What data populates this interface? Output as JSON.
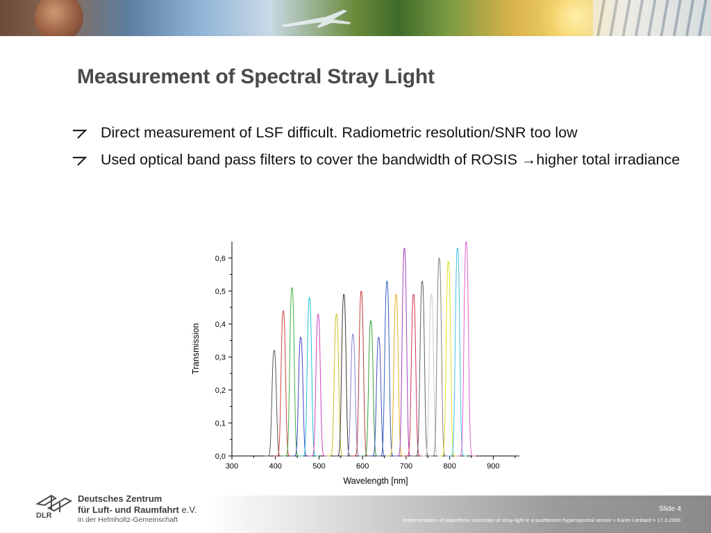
{
  "slide": {
    "title": "Measurement of Spectral Stray Light",
    "bullets": [
      "Direct measurement of LSF difficult. Radiometric resolution/SNR too low",
      "Used optical band pass filters to cover the bandwidth of ROSIS →higher total irradiance"
    ]
  },
  "chart_data": {
    "type": "line",
    "xlabel": "Wavelength [nm]",
    "ylabel": "Transmission",
    "xlim": [
      300,
      960
    ],
    "ylim": [
      0,
      0.65
    ],
    "xticks": [
      300,
      400,
      500,
      600,
      700,
      800,
      900
    ],
    "yticks": [
      "0,0",
      "0,1",
      "0,2",
      "0,3",
      "0,4",
      "0,5",
      "0,6"
    ],
    "grid": false,
    "legend": "none",
    "series": [
      {
        "center": 397,
        "peak": 0.32,
        "color": "#555555"
      },
      {
        "center": 418,
        "peak": 0.44,
        "color": "#d04040"
      },
      {
        "center": 438,
        "peak": 0.51,
        "color": "#40b040"
      },
      {
        "center": 458,
        "peak": 0.36,
        "color": "#4040c8"
      },
      {
        "center": 478,
        "peak": 0.48,
        "color": "#20c0d0"
      },
      {
        "center": 498,
        "peak": 0.43,
        "color": "#d040c0"
      },
      {
        "center": 540,
        "peak": 0.43,
        "color": "#c8c020"
      },
      {
        "center": 557,
        "peak": 0.49,
        "color": "#383838"
      },
      {
        "center": 578,
        "peak": 0.37,
        "color": "#8080d0"
      },
      {
        "center": 597,
        "peak": 0.5,
        "color": "#c03838"
      },
      {
        "center": 619,
        "peak": 0.41,
        "color": "#30a030"
      },
      {
        "center": 637,
        "peak": 0.36,
        "color": "#4050c0"
      },
      {
        "center": 656,
        "peak": 0.53,
        "color": "#3060c0"
      },
      {
        "center": 677,
        "peak": 0.49,
        "color": "#e0b020"
      },
      {
        "center": 696,
        "peak": 0.63,
        "color": "#a040c0"
      },
      {
        "center": 717,
        "peak": 0.49,
        "color": "#d03050"
      },
      {
        "center": 737,
        "peak": 0.53,
        "color": "#606060"
      },
      {
        "center": 758,
        "peak": 0.49,
        "color": "#c8c8d8"
      },
      {
        "center": 776,
        "peak": 0.6,
        "color": "#808080"
      },
      {
        "center": 797,
        "peak": 0.59,
        "color": "#e0e020"
      },
      {
        "center": 818,
        "peak": 0.63,
        "color": "#40c0e0"
      },
      {
        "center": 838,
        "peak": 0.65,
        "color": "#e060d0"
      }
    ]
  },
  "footer": {
    "org_line1": "Deutsches Zentrum",
    "org_line2": "für Luft- und Raumfahrt",
    "org_ev": "e.V.",
    "org_line3": "in der Helmholtz-Gemeinschaft",
    "logo_text": "DLR",
    "slide_label": "Slide 4",
    "info": "Implementation of algorithmic correction of stray light in a pushbroom hyperspectral sensor > Karim Lenhard > 17.3.2009"
  }
}
